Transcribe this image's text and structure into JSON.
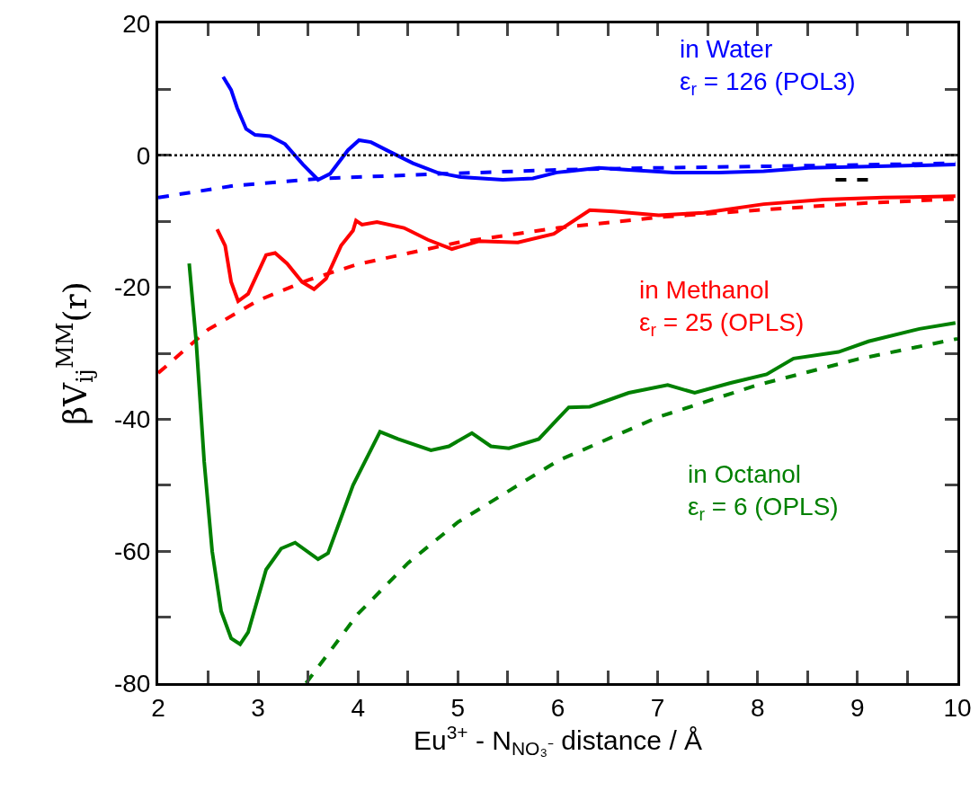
{
  "chart_data": {
    "type": "line",
    "xlabel": "Eu$^{3+}$ - N$_{NO₃⁻}$ distance / Å",
    "ylabel": "βV$_{ij}$$^{MM}$(r)",
    "xlim": [
      2,
      10
    ],
    "ylim": [
      -80,
      20
    ],
    "xticks": [
      2,
      {
        "value": 2.5,
        "label": null
      },
      3,
      {
        "value": 3.5,
        "label": null
      },
      4,
      {
        "value": 4.5,
        "label": null
      },
      5,
      {
        "value": 5.5,
        "label": null
      },
      6,
      {
        "value": 6.5,
        "label": null
      },
      7,
      {
        "value": 7.5,
        "label": null
      },
      8,
      {
        "value": 8.5,
        "label": null
      },
      9,
      {
        "value": 9.5,
        "label": null
      },
      10
    ],
    "yticks": [
      -80,
      {
        "value": -70,
        "label": null
      },
      -60,
      {
        "value": -50,
        "label": null
      },
      -40,
      {
        "value": -30,
        "label": null
      },
      -20,
      {
        "value": -10,
        "label": null
      },
      0,
      {
        "value": 10,
        "label": null
      },
      20
    ],
    "grid": false,
    "legend": false,
    "marker": "none",
    "ref_lines": [
      {
        "axis": "y",
        "value": 0,
        "color": "#000000",
        "line_style": "dotted"
      }
    ],
    "series": [
      {
        "name": "in Water\nε$_{r}$ = 126 (POL3)",
        "color": "#0000ff",
        "line_style": "solid",
        "x": [
          2.65,
          2.73,
          2.79,
          2.88,
          2.97,
          3.12,
          3.27,
          3.45,
          3.6,
          3.72,
          3.9,
          4.01,
          4.13,
          4.31,
          4.55,
          4.79,
          5.03,
          5.45,
          5.75,
          5.99,
          6.11,
          6.41,
          6.71,
          7.16,
          7.61,
          8.06,
          8.51,
          9.11,
          9.98
        ],
        "values": [
          11.9,
          9.9,
          7.2,
          4.0,
          3.1,
          2.9,
          1.7,
          -1.4,
          -3.7,
          -2.8,
          0.8,
          2.3,
          2.0,
          0.6,
          -1.2,
          -2.6,
          -3.3,
          -3.7,
          -3.5,
          -2.6,
          -2.4,
          -1.9,
          -2.2,
          -2.6,
          -2.6,
          -2.4,
          -1.9,
          -1.7,
          -1.4
        ]
      },
      {
        "color": "#0000ff",
        "line_style": "dashed",
        "x": [
          2,
          2.76,
          3.65,
          4.85,
          5.99,
          7.01,
          8.81,
          9.98
        ],
        "values": [
          -6.4,
          -4.6,
          -3.5,
          -2.8,
          -2.2,
          -1.9,
          -1.5,
          -1.2
        ]
      },
      {
        "name": "in Methanol\nε$_{r}$ = 25 (OPLS)",
        "color": "#ff0000",
        "line_style": "solid",
        "x": [
          2.59,
          2.67,
          2.73,
          2.8,
          2.9,
          3.08,
          3.17,
          3.29,
          3.44,
          3.56,
          3.68,
          3.83,
          3.95,
          3.98,
          4.04,
          4.19,
          4.46,
          4.7,
          4.94,
          5.21,
          5.6,
          5.96,
          6.32,
          6.56,
          7.01,
          7.46,
          8.06,
          8.66,
          9.26,
          9.98
        ],
        "values": [
          -11.2,
          -13.7,
          -19.2,
          -22.1,
          -21.0,
          -15.1,
          -14.8,
          -16.4,
          -19.2,
          -20.3,
          -18.7,
          -13.7,
          -11.4,
          -9.9,
          -10.5,
          -10.1,
          -11.0,
          -12.8,
          -14.2,
          -13.0,
          -13.2,
          -11.9,
          -8.3,
          -8.5,
          -9.1,
          -8.7,
          -7.4,
          -6.7,
          -6.4,
          -6.2
        ]
      },
      {
        "color": "#ff0000",
        "line_style": "dashed",
        "x": [
          2,
          2.5,
          3,
          3.5,
          4,
          5,
          6,
          7,
          8,
          9,
          10
        ],
        "values": [
          -33,
          -26.4,
          -22,
          -18.9,
          -16.5,
          -13.2,
          -11,
          -9.4,
          -8.3,
          -7.3,
          -6.6
        ]
      },
      {
        "name": "in Octanol\nε$_{r}$ = 6 (OPLS)",
        "color": "#008000",
        "line_style": "solid",
        "x": [
          2.31,
          2.38,
          2.46,
          2.54,
          2.63,
          2.73,
          2.82,
          2.9,
          3.08,
          3.23,
          3.37,
          3.6,
          3.7,
          3.95,
          4.22,
          4.4,
          4.73,
          4.91,
          5.14,
          5.33,
          5.51,
          5.81,
          5.99,
          6.11,
          6.32,
          6.71,
          7.1,
          7.37,
          7.73,
          8.09,
          8.36,
          8.81,
          9.11,
          9.62,
          9.98
        ],
        "values": [
          -16.4,
          -28.2,
          -46.4,
          -60.0,
          -69.1,
          -73.2,
          -74.1,
          -72.3,
          -62.8,
          -59.6,
          -58.7,
          -61.2,
          -60.3,
          -50.0,
          -41.9,
          -43.0,
          -44.7,
          -44.1,
          -42.1,
          -44.1,
          -44.4,
          -43.0,
          -40.1,
          -38.2,
          -38.1,
          -36.0,
          -34.8,
          -36.0,
          -34.5,
          -33.2,
          -30.8,
          -29.8,
          -28.2,
          -26.3,
          -25.4
        ]
      },
      {
        "color": "#008000",
        "line_style": "dashed",
        "x": [
          3.48,
          4,
          4.5,
          5,
          6,
          7,
          8,
          9,
          10
        ],
        "values": [
          -80,
          -69.5,
          -61.8,
          -55.6,
          -46.3,
          -39.7,
          -34.8,
          -30.9,
          -27.8
        ]
      },
      {
        "color": "#000000",
        "line_style": "dashed",
        "x": [
          8.78,
          9.15
        ],
        "values": [
          -3.7,
          -3.7
        ]
      }
    ]
  }
}
